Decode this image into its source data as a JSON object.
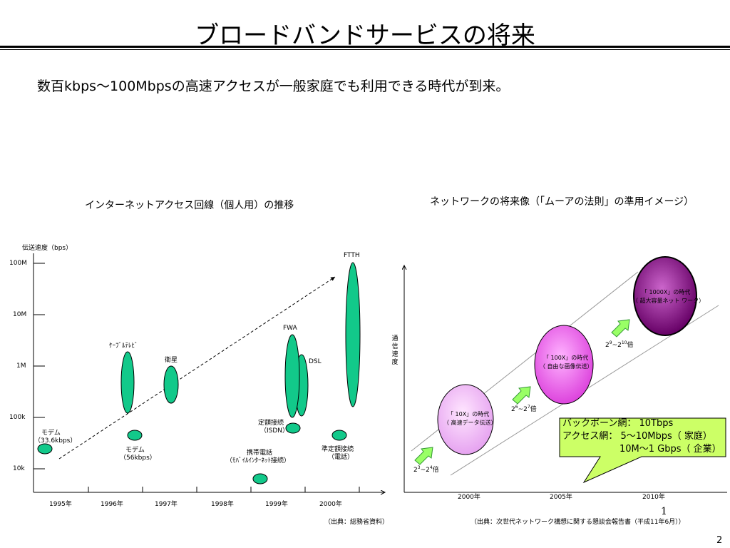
{
  "slide": {
    "title": "ブロードバンドサービスの将来",
    "subtitle": "数百kbps～100Mbpsの高速アクセスが一般家庭でも利用できる時代が到来。",
    "page_number": "2",
    "small_marker": "1"
  },
  "left_chart": {
    "caption": "インターネットアクセス回線（個人用）の推移",
    "y_axis_label": "伝送速度（bps）",
    "y_ticks": [
      "100M",
      "10M",
      "1M",
      "100k",
      "10k"
    ],
    "x_ticks": [
      "1995年",
      "1996年",
      "1997年",
      "1998年",
      "1999年",
      "2000年"
    ],
    "source": "（出典：総務省資料）",
    "items": {
      "ftth": "FTTH",
      "fwa": "FWA",
      "dsl": "DSL",
      "cable": "ｹｰﾌﾞﾙﾃﾚﾋﾞ",
      "satellite": "衛星",
      "modem1_line1": "モデム",
      "modem1_line2": "（33.6kbps）",
      "modem2_line1": "モデム",
      "modem2_line2": "（56kbps）",
      "isdn_line1": "定額接続",
      "isdn_line2": "（ISDN）",
      "mobile_line1": "携帯電話",
      "mobile_line2": "（ﾓﾊﾞｲﾙｲﾝﾀｰﾈｯﾄ接続）",
      "semi_line1": "準定額接続",
      "semi_line2": "（電話）"
    },
    "colors": {
      "ellipse_fill": "#12c98a",
      "ellipse_stroke": "#000000"
    }
  },
  "right_chart": {
    "caption": "ネットワークの将来像（「ムーアの法則」の準用イメージ）",
    "y_axis_label": "通信速度",
    "x_ticks": [
      "2000年",
      "2005年",
      "2010年"
    ],
    "source": "（出典：次世代ネットワーク構想に関する懇談会報告書（平成11年6月））",
    "circles": [
      {
        "line1": "「 10X」の時代",
        "line2": "（ 高速データ伝送）"
      },
      {
        "line1": "「 100X」の時代",
        "line2": "（ 自由な画像伝送）"
      },
      {
        "line1": "「 1000X」の時代",
        "line2": "（ 超大容量ネット ワーク）"
      }
    ],
    "multipliers": [
      {
        "base": "2",
        "e1": "3",
        "mid": "~2",
        "e2": "4",
        "suffix": "倍"
      },
      {
        "base": "2",
        "e1": "6",
        "mid": "~2",
        "e2": "7",
        "suffix": "倍"
      },
      {
        "base": "2",
        "e1": "9",
        "mid": "~2",
        "e2": "10",
        "suffix": "倍"
      }
    ],
    "callout": {
      "line1": "バックボーン網：  10Tbps",
      "line2": "アクセス網：  5～10Mbps（ 家庭）",
      "line3": "10M～1 Gbps（ 企業）"
    },
    "colors": {
      "callout_fill": "#ccff66",
      "arrow_fill": "#99ff66"
    }
  }
}
